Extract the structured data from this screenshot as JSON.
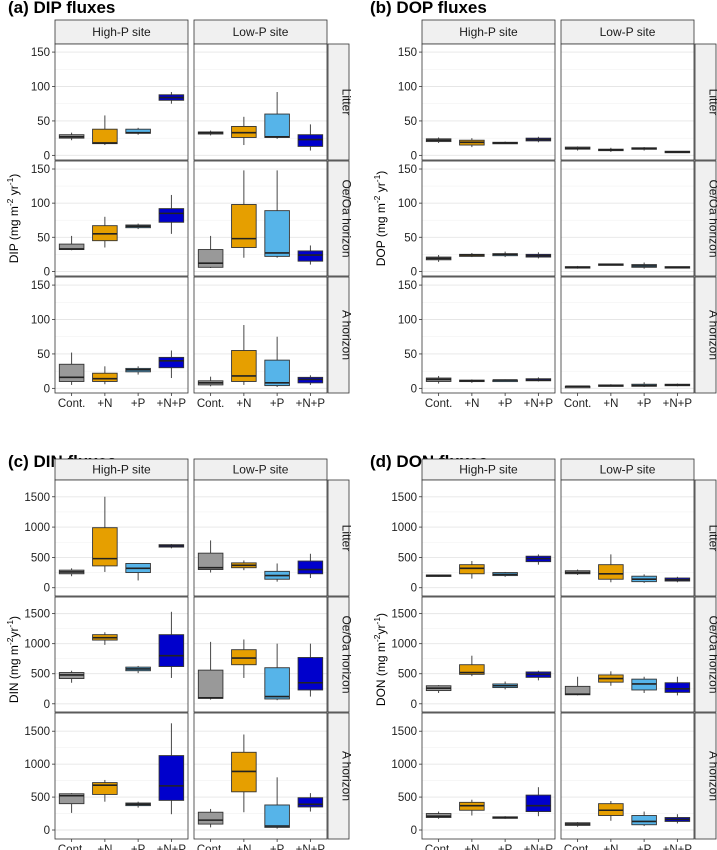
{
  "colors": {
    "Cont.": "#999999",
    "+N": "#E69F00",
    "+P": "#56B4E9",
    "+N+P": "#0000CC"
  },
  "chart_data": [
    {
      "type": "boxplot",
      "title": "(a) DIP fluxes",
      "ylabel": "DIP (mg m-2 yr-1)",
      "ylabel_parts": [
        "DIP (mg m",
        "-2",
        " yr",
        "-1",
        ")"
      ],
      "ylim": [
        0,
        155
      ],
      "yticks": [
        0,
        50,
        100,
        150
      ],
      "categories": [
        "Cont.",
        "+N",
        "+P",
        "+N+P"
      ],
      "columns": [
        "High-P site",
        "Low-P site"
      ],
      "rows": [
        "Litter",
        "Oe/Oa horizon",
        "A horizon"
      ],
      "panels": [
        [
          [
            [
              22,
              25,
              27,
              30,
              33
            ],
            [
              15,
              17,
              18,
              38,
              58
            ],
            [
              30,
              32,
              33,
              38,
              40
            ],
            [
              75,
              80,
              84,
              88,
              92
            ]
          ],
          [
            [
              29,
              31,
              33,
              34,
              36
            ],
            [
              15,
              26,
              33,
              42,
              56
            ],
            [
              24,
              26,
              27,
              60,
              92
            ],
            [
              7,
              13,
              23,
              30,
              45
            ]
          ]
        ],
        [
          [
            [
              31,
              32,
              33,
              40,
              52
            ],
            [
              35,
              45,
              55,
              67,
              80
            ],
            [
              62,
              64,
              66,
              68,
              70
            ],
            [
              55,
              72,
              85,
              92,
              112
            ]
          ],
          [
            [
              5,
              6,
              12,
              32,
              52
            ],
            [
              20,
              35,
              48,
              98,
              148
            ],
            [
              20,
              22,
              27,
              89,
              148
            ],
            [
              10,
              15,
              24,
              30,
              38
            ]
          ]
        ],
        [
          [
            [
              5,
              10,
              16,
              35,
              52
            ],
            [
              6,
              10,
              14,
              22,
              32
            ],
            [
              20,
              24,
              27,
              29,
              32
            ],
            [
              15,
              30,
              40,
              45,
              55
            ]
          ],
          [
            [
              3,
              5,
              8,
              11,
              17
            ],
            [
              5,
              10,
              18,
              55,
              92
            ],
            [
              2,
              4,
              8,
              41,
              75
            ],
            [
              5,
              8,
              13,
              16,
              19
            ]
          ]
        ]
      ]
    },
    {
      "type": "boxplot",
      "title": "(b) DOP fluxes",
      "ylabel": "DOP (mg m-2 yr-1)",
      "ylabel_parts": [
        "DOP (mg m",
        "-2",
        " yr",
        "-1",
        ")"
      ],
      "ylim": [
        0,
        155
      ],
      "yticks": [
        0,
        50,
        100,
        150
      ],
      "categories": [
        "Cont.",
        "+N",
        "+P",
        "+N+P"
      ],
      "columns": [
        "High-P site",
        "Low-P site"
      ],
      "rows": [
        "Litter",
        "Oe/Oa horizon",
        "A horizon"
      ],
      "panels": [
        [
          [
            [
              18,
              20,
              22,
              24,
              26
            ],
            [
              12,
              15,
              19,
              22,
              25
            ],
            [
              17,
              18,
              18,
              19,
              20
            ],
            [
              19,
              21,
              23,
              25,
              27
            ]
          ],
          [
            [
              7,
              9,
              10,
              12,
              13
            ],
            [
              5,
              7,
              8,
              9,
              11
            ],
            [
              7,
              9,
              10,
              11,
              12
            ],
            [
              4,
              5,
              5,
              6,
              6
            ]
          ]
        ],
        [
          [
            [
              14,
              17,
              19,
              21,
              24
            ],
            [
              21,
              22,
              24,
              25,
              27
            ],
            [
              21,
              23,
              25,
              26,
              29
            ],
            [
              19,
              21,
              23,
              25,
              28
            ]
          ],
          [
            [
              4,
              5,
              6,
              7,
              8
            ],
            [
              9,
              10,
              10,
              11,
              11
            ],
            [
              4,
              6,
              8,
              10,
              13
            ],
            [
              5,
              6,
              6,
              7,
              7
            ]
          ]
        ],
        [
          [
            [
              7,
              10,
              13,
              15,
              18
            ],
            [
              8,
              10,
              11,
              12,
              13
            ],
            [
              11,
              12,
              12,
              12,
              13
            ],
            [
              10,
              11,
              12,
              14,
              16
            ]
          ],
          [
            [
              2,
              3,
              3,
              3,
              4
            ],
            [
              3,
              4,
              4,
              5,
              6
            ],
            [
              2,
              3,
              4,
              6,
              9
            ],
            [
              3,
              4,
              5,
              6,
              7
            ]
          ]
        ]
      ]
    },
    {
      "type": "boxplot",
      "title": "(c) DIN fluxes",
      "ylabel": "DIN (mg m-2 yr-1)",
      "ylabel_parts": [
        "DIN (mg m",
        "-2",
        "yr",
        "-1",
        ")"
      ],
      "ylim": [
        -60,
        1700
      ],
      "yticks": [
        0,
        500,
        1000,
        1500
      ],
      "categories": [
        "Cont.",
        "+N",
        "+P",
        "+N+P"
      ],
      "columns": [
        "High-P site",
        "Low-P site"
      ],
      "rows": [
        "Litter",
        "Oe/Oa horizon",
        "A horizon"
      ],
      "panels": [
        [
          [
            [
              190,
              230,
              260,
              290,
              320
            ],
            [
              260,
              360,
              480,
              990,
              1500
            ],
            [
              120,
              250,
              320,
              400,
              400
            ],
            [
              650,
              670,
              690,
              710,
              720
            ]
          ],
          [
            [
              250,
              300,
              330,
              570,
              780
            ],
            [
              290,
              330,
              370,
              410,
              450
            ],
            [
              100,
              140,
              200,
              270,
              400
            ],
            [
              160,
              230,
              300,
              440,
              560
            ]
          ]
        ],
        [
          [
            [
              350,
              420,
              480,
              520,
              550
            ],
            [
              980,
              1060,
              1100,
              1150,
              1190
            ],
            [
              510,
              550,
              580,
              610,
              630
            ],
            [
              430,
              620,
              800,
              1150,
              1530
            ]
          ],
          [
            [
              70,
              90,
              100,
              560,
              1030
            ],
            [
              430,
              650,
              760,
              900,
              1070
            ],
            [
              60,
              80,
              120,
              600,
              1000
            ],
            [
              120,
              230,
              350,
              770,
              1000
            ]
          ]
        ],
        [
          [
            [
              260,
              400,
              520,
              550,
              560
            ],
            [
              430,
              540,
              680,
              720,
              760
            ],
            [
              340,
              370,
              390,
              410,
              430
            ],
            [
              240,
              450,
              670,
              1130,
              1620
            ]
          ],
          [
            [
              40,
              90,
              150,
              270,
              320
            ],
            [
              270,
              580,
              890,
              1180,
              1450
            ],
            [
              20,
              40,
              60,
              380,
              800
            ],
            [
              280,
              350,
              390,
              490,
              560
            ]
          ]
        ]
      ]
    },
    {
      "type": "boxplot",
      "title": "(d) DON fluxes",
      "ylabel": "DON (mg m-2 yr-1)",
      "ylabel_parts": [
        "DON (mg m",
        "-2",
        "yr",
        "-1",
        ")"
      ],
      "ylim": [
        -60,
        1700
      ],
      "yticks": [
        0,
        500,
        1000,
        1500
      ],
      "categories": [
        "Cont.",
        "+N",
        "+P",
        "+N+P"
      ],
      "columns": [
        "High-P site",
        "Low-P site"
      ],
      "rows": [
        "Litter",
        "Oe/Oa horizon",
        "A horizon"
      ],
      "panels": [
        [
          [
            [
              180,
              190,
              200,
              210,
              210
            ],
            [
              150,
              230,
              320,
              380,
              440
            ],
            [
              180,
              200,
              220,
              250,
              260
            ],
            [
              380,
              430,
              480,
              520,
              550
            ]
          ],
          [
            [
              210,
              230,
              250,
              280,
              300
            ],
            [
              90,
              140,
              230,
              380,
              550
            ],
            [
              80,
              100,
              140,
              190,
              220
            ],
            [
              90,
              110,
              130,
              160,
              180
            ]
          ]
        ],
        [
          [
            [
              180,
              220,
              260,
              300,
              310
            ],
            [
              460,
              490,
              520,
              650,
              800
            ],
            [
              240,
              270,
              300,
              330,
              370
            ],
            [
              390,
              440,
              490,
              530,
              550
            ]
          ],
          [
            [
              140,
              150,
              160,
              290,
              450
            ],
            [
              300,
              360,
              420,
              480,
              540
            ],
            [
              180,
              230,
              330,
              410,
              450
            ],
            [
              140,
              190,
              250,
              350,
              450
            ]
          ]
        ],
        [
          [
            [
              170,
              190,
              210,
              250,
              280
            ],
            [
              220,
              300,
              370,
              420,
              460
            ],
            [
              170,
              180,
              190,
              200,
              210
            ],
            [
              210,
              280,
              370,
              530,
              650
            ]
          ],
          [
            [
              50,
              70,
              90,
              110,
              120
            ],
            [
              140,
              220,
              300,
              400,
              440
            ],
            [
              60,
              80,
              130,
              220,
              280
            ],
            [
              100,
              130,
              160,
              190,
              240
            ]
          ]
        ]
      ]
    }
  ]
}
